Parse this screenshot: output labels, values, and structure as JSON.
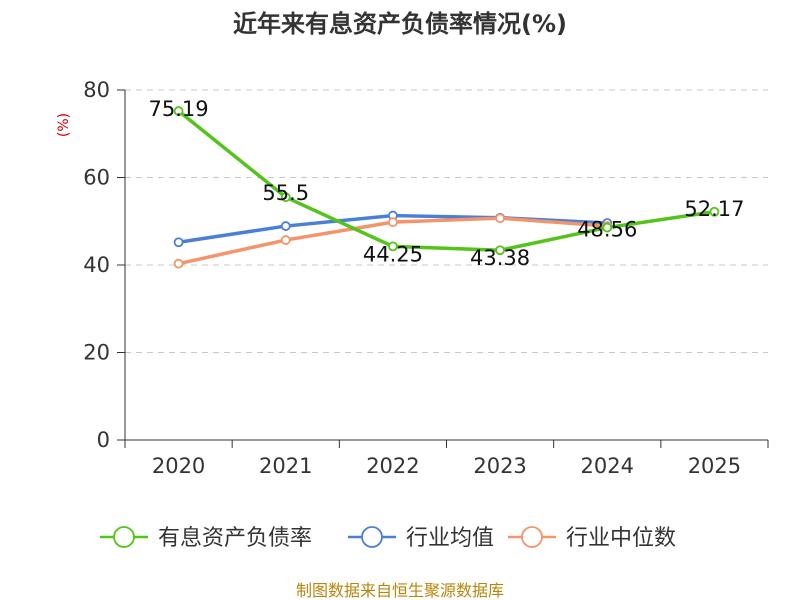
{
  "title": "近年来有息资产负债率情况(%)",
  "unit": "(%)",
  "source": "制图数据来自恒生聚源数据库",
  "chart_data": {
    "type": "line",
    "categories": [
      "2020",
      "2021",
      "2022",
      "2023",
      "2024",
      "2025"
    ],
    "ylim": [
      0,
      80
    ],
    "yticks": [
      0,
      20,
      40,
      60,
      80
    ],
    "grid": true,
    "legend_position": "bottom",
    "series": [
      {
        "name": "有息资产负债率",
        "color": "#52c41a",
        "values": [
          75.19,
          55.5,
          44.25,
          43.38,
          48.56,
          52.17
        ],
        "labels": [
          "75.19",
          "55.5",
          "44.25",
          "43.38",
          "48.56",
          "52.17"
        ]
      },
      {
        "name": "行业均值",
        "color": "#4a7fd8",
        "values": [
          45.2,
          48.9,
          51.3,
          50.8,
          49.6,
          null
        ]
      },
      {
        "name": "行业中位数",
        "color": "#f4946a",
        "values": [
          40.3,
          45.7,
          49.8,
          50.7,
          48.9,
          null
        ]
      }
    ]
  }
}
